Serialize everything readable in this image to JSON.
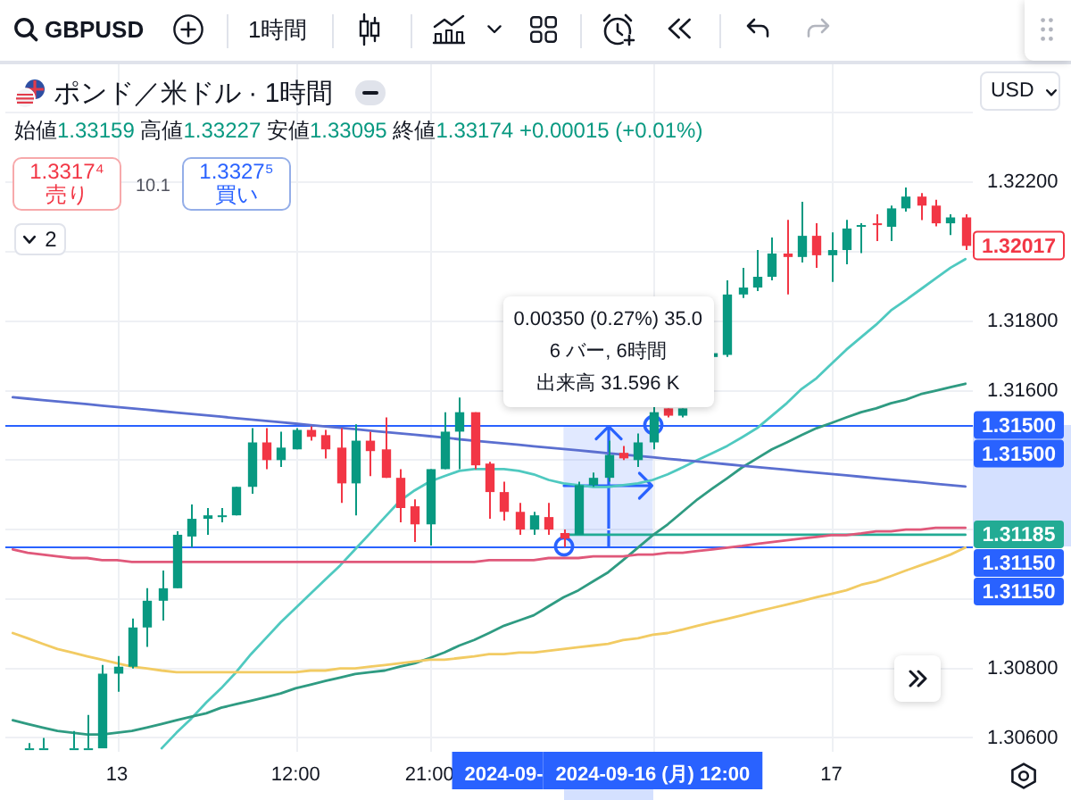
{
  "chart_data": {
    "type": "candlestick",
    "title": "ポンド／米ドル · 1時間",
    "subtitle": "始値1.33159 高値1.33227 安値1.33095 終値1.33174 +0.00015 (+0.01%)",
    "annotations": [
      "GBPUSD",
      "1時間",
      "USD",
      "1.3317⁴",
      "売り",
      "10.1",
      "1.3327⁵",
      "買い",
      "2",
      "0.00350 (0.27%) 35.0",
      "6 バー, 6時間",
      "出来高 31.596 K",
      "2024-09-",
      "1.31500",
      "1.31150",
      "1.32017"
    ],
    "categories": [
      null,
      null,
      null,
      null,
      null,
      null,
      null,
      "13",
      null,
      null,
      null,
      null,
      null,
      null,
      null,
      null,
      null,
      null,
      null,
      "12:00",
      null,
      null,
      null,
      null,
      null,
      null,
      null,
      null,
      "21:00",
      null,
      null,
      null,
      null,
      null,
      null,
      null,
      null,
      null,
      null,
      null,
      null,
      null,
      null,
      "2024-09-16 (月) 12:00",
      null,
      null,
      null,
      null,
      null,
      null,
      null,
      null,
      null,
      null,
      null,
      "17",
      null,
      null,
      null,
      null,
      null,
      null,
      null,
      null,
      null
    ],
    "ohlc": [
      null,
      [
        1.3057,
        1.30585,
        1.3057,
        1.3057
      ],
      [
        1.3057,
        1.306,
        1.3057,
        1.3057
      ],
      null,
      [
        1.3057,
        1.3062,
        1.3057,
        1.3057
      ],
      [
        1.3057,
        1.30666,
        1.3057,
        1.3057
      ],
      [
        1.3057,
        1.3081,
        1.3057,
        1.30785
      ],
      [
        1.30785,
        1.30836,
        1.30733,
        1.30805
      ],
      [
        1.30805,
        1.30944,
        1.308,
        1.30918
      ],
      [
        1.30918,
        1.31031,
        1.30862,
        1.30995
      ],
      [
        1.30995,
        1.31082,
        1.30938,
        1.31031
      ],
      [
        1.31031,
        1.31195,
        1.31031,
        1.31185
      ],
      [
        1.3118,
        1.31272,
        1.31149,
        1.31231
      ],
      [
        1.31231,
        1.31262,
        1.31185,
        1.31241
      ],
      [
        1.31236,
        1.31262,
        1.31221,
        1.31241
      ],
      [
        1.31241,
        1.31323,
        1.31241,
        1.31323
      ],
      [
        1.31323,
        1.31492,
        1.31303,
        1.31451
      ],
      [
        1.31451,
        1.31492,
        1.31374,
        1.314
      ],
      [
        1.314,
        1.31482,
        1.3138,
        1.31436
      ],
      [
        1.31431,
        1.31492,
        1.31431,
        1.31487
      ],
      [
        1.31487,
        1.31497,
        1.31456,
        1.31467
      ],
      [
        1.31472,
        1.31487,
        1.31405,
        1.31431
      ],
      [
        1.31436,
        1.31492,
        1.31277,
        1.31333
      ],
      [
        1.31333,
        1.31503,
        1.31241,
        1.31456
      ],
      [
        1.31456,
        1.31482,
        1.31354,
        1.31426
      ],
      [
        1.31431,
        1.31523,
        1.31349,
        1.31349
      ],
      [
        1.31349,
        1.31374,
        1.31221,
        1.31262
      ],
      [
        1.31267,
        1.31287,
        1.31164,
        1.31215
      ],
      [
        1.31215,
        1.31374,
        1.31154,
        1.31374
      ],
      [
        1.31374,
        1.31538,
        1.31374,
        1.31482
      ],
      [
        1.31482,
        1.3158,
        1.31374,
        1.31538
      ],
      [
        1.31538,
        1.31538,
        1.31374,
        1.31385
      ],
      [
        1.3139,
        1.31395,
        1.31231,
        1.31308
      ],
      [
        1.31308,
        1.31338,
        1.31226,
        1.31251
      ],
      [
        1.31251,
        1.31277,
        1.31185,
        1.312
      ],
      [
        1.312,
        1.31251,
        1.31185,
        1.31241
      ],
      [
        1.31236,
        1.31277,
        1.31185,
        1.312
      ],
      [
        1.3119,
        1.312,
        1.3115,
        1.31174
      ],
      [
        1.31185,
        1.31338,
        1.31185,
        1.31328
      ],
      [
        1.31328,
        1.31364,
        1.31323,
        1.31349
      ],
      [
        1.31349,
        1.31456,
        1.31338,
        1.31415
      ],
      [
        1.31421,
        1.31441,
        1.314,
        1.31405
      ],
      [
        1.314,
        1.31477,
        1.3138,
        1.31451
      ],
      [
        1.31451,
        1.31559,
        1.31431,
        1.31538
      ],
      [
        1.31549,
        1.31549,
        1.31523,
        1.31528
      ],
      [
        1.31528,
        1.31549,
        1.31523,
        1.31549
      ],
      null,
      [
        1.31697,
        1.31708,
        1.31692,
        1.31708
      ],
      [
        1.31703,
        1.31918,
        1.31697,
        1.31877
      ],
      [
        1.31877,
        1.31954,
        1.31867,
        1.31897
      ],
      [
        1.31897,
        1.32005,
        1.31887,
        1.31928
      ],
      [
        1.31928,
        1.32041,
        1.31918,
        1.31995
      ],
      [
        1.31995,
        1.32092,
        1.31877,
        1.31985
      ],
      [
        1.31985,
        1.32144,
        1.31969,
        1.32046
      ],
      [
        1.32046,
        1.32082,
        1.31954,
        1.3199
      ],
      [
        1.3199,
        1.32056,
        1.31913,
        1.32005
      ],
      [
        1.32005,
        1.32092,
        1.31964,
        1.32067
      ],
      [
        1.32072,
        1.32082,
        1.31996,
        1.32077
      ],
      [
        1.32082,
        1.32108,
        1.32031,
        1.32077
      ],
      [
        1.32072,
        1.32133,
        1.32031,
        1.32125
      ],
      [
        1.32125,
        1.32185,
        1.32116,
        1.32159
      ],
      [
        1.32159,
        1.32169,
        1.32091,
        1.32133
      ],
      [
        1.32133,
        1.3215,
        1.32073,
        1.32082
      ],
      [
        1.32082,
        1.32108,
        1.32048,
        1.32099
      ],
      [
        1.32099,
        1.32108,
        1.32005,
        1.32017
      ]
    ],
    "colors": [
      null,
      "#089981",
      "#089981",
      null,
      "#089981",
      "#089981",
      "#089981",
      "#089981",
      "#089981",
      "#089981",
      "#089981",
      "#089981",
      "#089981",
      "#089981",
      "#089981",
      "#089981",
      "#089981",
      "#f23645",
      "#089981",
      "#089981",
      "#f23645",
      "#f23645",
      "#f23645",
      "#089981",
      "#f23645",
      "#f23645",
      "#f23645",
      "#f23645",
      "#089981",
      "#089981",
      "#089981",
      "#f23645",
      "#f23645",
      "#f23645",
      "#f23645",
      "#089981",
      "#f23645",
      "#f23645",
      "#089981",
      "#089981",
      "#089981",
      "#f23645",
      "#089981",
      "#089981",
      "#f23645",
      "#089981",
      null,
      "#089981",
      "#089981",
      "#089981",
      "#089981",
      "#089981",
      "#f23645",
      "#089981",
      "#f23645",
      "#089981",
      "#089981",
      "#089981",
      "#f23645",
      "#089981",
      "#089981",
      "#f23645",
      "#f23645",
      "#089981",
      "#f23645"
    ],
    "series": [
      {
        "type": "line",
        "color": "#5b6fd0",
        "values": [
          1.31581,
          1.31577,
          1.31573,
          1.31569,
          1.31565,
          1.31561,
          1.31557,
          1.31553,
          1.31549,
          1.31545,
          1.31541,
          1.31537,
          1.31533,
          1.31529,
          1.31525,
          1.31521,
          1.31517,
          1.31513,
          1.31509,
          1.31505,
          1.31501,
          1.31497,
          1.31493,
          1.31489,
          1.31485,
          1.31481,
          1.31477,
          1.31473,
          1.31469,
          1.31465,
          1.3146,
          1.31456,
          1.31452,
          1.31448,
          1.31444,
          1.3144,
          1.31436,
          1.31432,
          1.31428,
          1.31424,
          1.3142,
          1.31416,
          1.31412,
          1.31408,
          1.31404,
          1.314,
          1.31396,
          1.31392,
          1.31388,
          1.31384,
          1.3138,
          1.31376,
          1.31372,
          1.31368,
          1.31364,
          1.3136,
          1.31356,
          1.31352,
          1.31348,
          1.31344,
          1.3134,
          1.31336,
          1.31332,
          1.31328,
          1.31324
        ]
      },
      {
        "type": "line",
        "color": "#e0587a",
        "values": [
          1.31143,
          1.31133,
          1.31128,
          1.31123,
          1.31118,
          1.31118,
          1.31112,
          1.31112,
          1.31107,
          1.31107,
          1.31107,
          1.31107,
          1.31107,
          1.31107,
          1.31107,
          1.31107,
          1.31107,
          1.31107,
          1.31107,
          1.31107,
          1.31107,
          1.31107,
          1.31107,
          1.31107,
          1.31107,
          1.31107,
          1.31107,
          1.31107,
          1.31107,
          1.31107,
          1.31107,
          1.31107,
          1.31112,
          1.31112,
          1.31112,
          1.31112,
          1.31118,
          1.31118,
          1.31118,
          1.31123,
          1.31123,
          1.31123,
          1.31128,
          1.31128,
          1.31133,
          1.31133,
          1.31138,
          1.31143,
          1.31148,
          1.31153,
          1.31159,
          1.31164,
          1.31169,
          1.31174,
          1.31179,
          1.31184,
          1.31184,
          1.31189,
          1.31195,
          1.31195,
          1.312,
          1.312,
          1.31205,
          1.31205,
          1.31205
        ]
      },
      {
        "type": "line",
        "color": "#f2cb63",
        "values": [
          1.30902,
          1.30887,
          1.30871,
          1.30856,
          1.30846,
          1.30835,
          1.30825,
          1.30815,
          1.30805,
          1.308,
          1.30794,
          1.30789,
          1.30789,
          1.30789,
          1.30789,
          1.30789,
          1.30789,
          1.30789,
          1.30789,
          1.30789,
          1.30794,
          1.30794,
          1.308,
          1.308,
          1.30805,
          1.3081,
          1.30815,
          1.3082,
          1.30825,
          1.30825,
          1.3083,
          1.30835,
          1.30841,
          1.30841,
          1.30846,
          1.30846,
          1.30851,
          1.30856,
          1.30861,
          1.30866,
          1.30871,
          1.30882,
          1.30887,
          1.30897,
          1.30902,
          1.30912,
          1.30923,
          1.30933,
          1.30943,
          1.30953,
          1.30964,
          1.30974,
          1.30984,
          1.30994,
          1.31005,
          1.31015,
          1.31025,
          1.31041,
          1.31051,
          1.31066,
          1.31082,
          1.31097,
          1.31112,
          1.31128,
          1.31148
        ]
      },
      {
        "type": "line",
        "color": "#2f9b82",
        "values": [
          1.30651,
          1.3064,
          1.3063,
          1.3062,
          1.30615,
          1.3061,
          1.3061,
          1.30615,
          1.3062,
          1.3063,
          1.3064,
          1.30651,
          1.30661,
          1.30671,
          1.30687,
          1.30697,
          1.30707,
          1.30717,
          1.30728,
          1.30743,
          1.30753,
          1.30764,
          1.30774,
          1.30784,
          1.30789,
          1.30794,
          1.30805,
          1.30815,
          1.3083,
          1.30846,
          1.30866,
          1.30882,
          1.30902,
          1.30923,
          1.30938,
          1.30953,
          1.30979,
          1.31005,
          1.31025,
          1.31051,
          1.31077,
          1.31112,
          1.31148,
          1.31184,
          1.31215,
          1.31251,
          1.31287,
          1.31318,
          1.31348,
          1.31379,
          1.31405,
          1.31431,
          1.31451,
          1.31472,
          1.31492,
          1.31507,
          1.31523,
          1.31538,
          1.31549,
          1.31564,
          1.31574,
          1.3159,
          1.316,
          1.3161,
          1.3162
        ]
      },
      {
        "type": "line",
        "color": "#4fc9c0",
        "values": [
          null,
          null,
          null,
          null,
          null,
          null,
          null,
          null,
          null,
          null,
          1.3057,
          1.30615,
          1.30656,
          1.30702,
          1.30743,
          1.30789,
          1.30841,
          1.30887,
          1.30933,
          1.30974,
          1.31015,
          1.31056,
          1.31097,
          1.31143,
          1.31189,
          1.31236,
          1.31282,
          1.31313,
          1.31338,
          1.31354,
          1.31369,
          1.31374,
          1.31374,
          1.31374,
          1.31369,
          1.31359,
          1.31343,
          1.31333,
          1.31328,
          1.31323,
          1.31323,
          1.31328,
          1.31333,
          1.31343,
          1.31359,
          1.31379,
          1.314,
          1.3142,
          1.31441,
          1.31466,
          1.31492,
          1.31528,
          1.31564,
          1.31605,
          1.31636,
          1.31677,
          1.31718,
          1.31754,
          1.3179,
          1.31831,
          1.31861,
          1.31892,
          1.31923,
          1.31954,
          1.31979
        ]
      },
      {
        "type": "line",
        "color": "#22ab94",
        "values": [
          null,
          null,
          null,
          null,
          null,
          null,
          null,
          null,
          null,
          null,
          null,
          null,
          null,
          null,
          null,
          null,
          null,
          null,
          null,
          null,
          null,
          null,
          null,
          null,
          null,
          null,
          null,
          null,
          null,
          null,
          null,
          null,
          null,
          null,
          null,
          null,
          null,
          1.31185,
          1.31185,
          1.31185,
          1.31185,
          1.31185,
          1.31185,
          1.31185,
          1.31185,
          1.31185,
          1.31185,
          1.31185,
          1.31185,
          1.31185,
          1.31185,
          1.31185,
          1.31185,
          1.31185,
          1.31185,
          1.31185,
          1.31185,
          1.31185,
          1.31185,
          1.31185,
          1.31185,
          1.31185,
          1.31185,
          1.31185,
          1.31185
        ],
        "value_labels": [
          null,
          null,
          null,
          null,
          null,
          null,
          null,
          null,
          null,
          null,
          null,
          null,
          null,
          null,
          null,
          null,
          null,
          null,
          null,
          null,
          null,
          null,
          null,
          null,
          null,
          null,
          null,
          null,
          null,
          null,
          null,
          null,
          null,
          null,
          null,
          null,
          null,
          null,
          null,
          null,
          null,
          null,
          null,
          null,
          null,
          null,
          null,
          null,
          null,
          null,
          null,
          null,
          null,
          null,
          null,
          null,
          null,
          null,
          null,
          null,
          null,
          null,
          null,
          null,
          "1.31185"
        ]
      },
      {
        "type": "line",
        "color": "#2962ff",
        "values": [
          null,
          null,
          null,
          null,
          null,
          null,
          null,
          null,
          null,
          null,
          null,
          null,
          null,
          null,
          null,
          null,
          null,
          null,
          null,
          null,
          null,
          null,
          null,
          null,
          null,
          null,
          null,
          null,
          null,
          null,
          null,
          null,
          null,
          null,
          null,
          null,
          null,
          null,
          null,
          null,
          null,
          null,
          null,
          null,
          null,
          null,
          null,
          null,
          null,
          null,
          null,
          null,
          null,
          null,
          null,
          null,
          null,
          null,
          null,
          null,
          null,
          null,
          null,
          null,
          null
        ],
        "lower": [
          null,
          null,
          null,
          null,
          null,
          null,
          null,
          null,
          null,
          null,
          null,
          null,
          null,
          null,
          null,
          null,
          null,
          null,
          null,
          null,
          null,
          null,
          null,
          null,
          null,
          null,
          null,
          null,
          null,
          null,
          null,
          null,
          null,
          null,
          null,
          null,
          null,
          1.3115,
          1.3115,
          1.3115,
          1.3115,
          1.3115,
          1.3115,
          1.3115,
          null,
          null,
          null,
          null,
          null,
          null,
          null,
          null,
          null,
          null,
          null,
          null,
          null,
          null,
          null,
          null,
          null,
          null,
          null,
          null,
          null
        ],
        "upper": [
          null,
          null,
          null,
          null,
          null,
          null,
          null,
          null,
          null,
          null,
          null,
          null,
          null,
          null,
          null,
          null,
          null,
          null,
          null,
          null,
          null,
          null,
          null,
          null,
          null,
          null,
          null,
          null,
          null,
          null,
          null,
          null,
          null,
          null,
          null,
          null,
          null,
          1.315,
          1.315,
          1.315,
          1.315,
          1.315,
          1.315,
          1.315,
          null,
          null,
          null,
          null,
          null,
          null,
          null,
          null,
          null,
          null,
          null,
          null,
          null,
          null,
          null,
          null,
          null,
          null,
          null,
          null,
          null
        ]
      }
    ],
    "ylim": [
      1.3056,
      1.3254
    ],
    "yticks": [
      {
        "value": 1.306,
        "label": "1.30600"
      },
      {
        "value": 1.308,
        "label": "1.30800"
      },
      {
        "value": 1.31,
        "label": null
      },
      {
        "value": 1.312,
        "label": null
      },
      {
        "value": 1.314,
        "label": null
      },
      {
        "value": 1.316,
        "label": "1.31600"
      },
      {
        "value": 1.318,
        "label": "1.31800"
      },
      {
        "value": 1.32,
        "label": null
      },
      {
        "value": 1.322,
        "label": "1.32200"
      },
      {
        "value": 1.324,
        "label": null
      }
    ],
    "grid": true,
    "ref_lines": [
      {
        "axis": "y",
        "value": 1.315,
        "label": "1.31500",
        "color": "#2962ff"
      },
      {
        "axis": "y",
        "value": 1.3115,
        "label": "1.31150",
        "color": "#2962ff"
      }
    ]
  }
}
